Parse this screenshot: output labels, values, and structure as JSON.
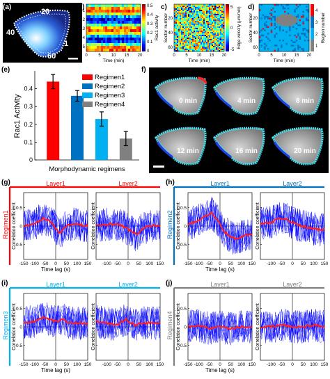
{
  "panel_labels": {
    "a": "(a)",
    "b": "b)",
    "c": "c)",
    "d": "d)",
    "e": "(e)",
    "f": "f)",
    "g": "(g)",
    "h": "(h)",
    "i": "(i)",
    "j": "(j)"
  },
  "panel_a": {
    "sector_labels": [
      "20",
      "40",
      "1",
      "60"
    ]
  },
  "panel_b": {
    "ylabel": "Window number",
    "colorbar_label": "Rac1 activity",
    "xlabel": "Time (min)",
    "xticks": [
      "0",
      "5",
      "10",
      "15",
      "20"
    ],
    "yticks": [
      "1",
      "2",
      "3",
      "4",
      "5"
    ],
    "cb_ticks": [
      "0.5",
      "0.4",
      "0.3",
      "0.2",
      "0.1",
      "0"
    ]
  },
  "panel_c": {
    "ylabel": "Sector number",
    "colorbar_label": "Edge velocity (μm/min)",
    "xlabel": "Time (min)",
    "xticks": [
      "0",
      "5",
      "10",
      "15",
      "20"
    ],
    "yticks": [
      "20",
      "40",
      "60"
    ],
    "cb_ticks": [
      "5",
      "0",
      "-5"
    ]
  },
  "panel_d": {
    "ylabel": "Sector number",
    "colorbar_label": "Region number",
    "xlabel": "Time (min)",
    "xticks": [
      "0",
      "5",
      "10",
      "15",
      "20"
    ],
    "yticks": [
      "20",
      "40",
      "60"
    ],
    "cb_ticks": [
      "4",
      "3",
      "2",
      "1"
    ]
  },
  "chart_data": [
    {
      "type": "bar",
      "panel": "e",
      "ylabel": "Rac1 Activity",
      "xlabel": "Morphodynamic regimens",
      "categories": [
        "Regimen1",
        "Regimen2",
        "Regimen3",
        "Regimen4"
      ],
      "values": [
        0.44,
        0.36,
        0.23,
        0.12
      ],
      "errors": [
        0.04,
        0.03,
        0.04,
        0.04
      ],
      "ylim": [
        0,
        0.5
      ],
      "yticks": [
        "0",
        "0.1",
        "0.2",
        "0.3",
        "0.4"
      ],
      "colors": [
        "#ff0000",
        "#0070c0",
        "#00b0f0",
        "#808080"
      ],
      "legend": "top-right"
    },
    {
      "type": "line",
      "panel": "g",
      "regimen_label": "Regimen1",
      "layers": [
        "Layer1",
        "Layer2"
      ],
      "ylabel": "Correlation coefficient",
      "xlabel": "Time lag (s)",
      "xticks": [
        "-150",
        "-100",
        "-50",
        "0",
        "50",
        "100",
        "150"
      ],
      "yticks": [
        "-0.5",
        "0",
        "0.5"
      ],
      "xlim": [
        -150,
        150
      ],
      "ylim": [
        -0.9,
        0.9
      ],
      "mean_layer1": [
        [
          -150,
          0.0
        ],
        [
          -100,
          0.05
        ],
        [
          -60,
          0.2
        ],
        [
          -30,
          0.15
        ],
        [
          0,
          -0.05
        ],
        [
          20,
          -0.2
        ],
        [
          40,
          -0.05
        ],
        [
          60,
          0.05
        ],
        [
          100,
          0.05
        ],
        [
          150,
          0.0
        ]
      ],
      "mean_layer2": [
        [
          -150,
          0.0
        ],
        [
          -100,
          0.05
        ],
        [
          -50,
          0.05
        ],
        [
          -10,
          -0.05
        ],
        [
          20,
          -0.15
        ],
        [
          40,
          -0.25
        ],
        [
          60,
          -0.1
        ],
        [
          100,
          0.0
        ],
        [
          150,
          0.02
        ]
      ]
    },
    {
      "type": "line",
      "panel": "h",
      "regimen_label": "Regimen2",
      "layers": [
        "Layer1",
        "Layer2"
      ],
      "ylabel": "Correlation coefficient",
      "xlabel": "Time lag (s)",
      "xticks": [
        "-150",
        "-100",
        "-50",
        "0",
        "50",
        "100",
        "150"
      ],
      "yticks": [
        "-0.5",
        "0",
        "0.5"
      ],
      "xlim": [
        -150,
        150
      ],
      "ylim": [
        -0.9,
        0.9
      ],
      "mean_layer1": [
        [
          -150,
          0.05
        ],
        [
          -100,
          0.15
        ],
        [
          -60,
          0.3
        ],
        [
          -40,
          0.35
        ],
        [
          -10,
          0.15
        ],
        [
          20,
          -0.15
        ],
        [
          50,
          -0.3
        ],
        [
          80,
          -0.35
        ],
        [
          120,
          -0.25
        ],
        [
          150,
          -0.2
        ]
      ],
      "mean_layer2": [
        [
          -150,
          0.05
        ],
        [
          -100,
          0.1
        ],
        [
          -60,
          0.2
        ],
        [
          -30,
          0.2
        ],
        [
          0,
          0.1
        ],
        [
          40,
          0.0
        ],
        [
          80,
          -0.05
        ],
        [
          120,
          -0.1
        ],
        [
          150,
          -0.1
        ]
      ]
    },
    {
      "type": "line",
      "panel": "i",
      "regimen_label": "Regimen3",
      "layers": [
        "Layer1",
        "Layer2"
      ],
      "ylabel": "Correlation coefficient",
      "xlabel": "Time lag (s)",
      "xticks": [
        "-150",
        "-100",
        "-50",
        "0",
        "50",
        "100",
        "150"
      ],
      "yticks": [
        "-0.5",
        "0",
        "0.5"
      ],
      "xlim": [
        -150,
        150
      ],
      "ylim": [
        -0.9,
        0.9
      ],
      "mean_layer1": [
        [
          -150,
          0.1
        ],
        [
          -100,
          0.15
        ],
        [
          -60,
          0.25
        ],
        [
          -30,
          0.2
        ],
        [
          0,
          0.15
        ],
        [
          30,
          0.2
        ],
        [
          70,
          0.1
        ],
        [
          100,
          0.1
        ],
        [
          150,
          0.1
        ]
      ],
      "mean_layer2": [
        [
          -150,
          0.15
        ],
        [
          -100,
          0.1
        ],
        [
          -50,
          0.05
        ],
        [
          -10,
          0.2
        ],
        [
          30,
          0.05
        ],
        [
          60,
          0.1
        ],
        [
          100,
          0.1
        ],
        [
          150,
          0.1
        ]
      ]
    },
    {
      "type": "line",
      "panel": "j",
      "regimen_label": "Regimen4",
      "layers": [
        "Layer1",
        "Layer2"
      ],
      "ylabel": "Correlation coefficient",
      "xlabel": "Time lag (s)",
      "xticks": [
        "-150",
        "-100",
        "-50",
        "0",
        "50",
        "100",
        "150"
      ],
      "yticks": [
        "-0.5",
        "0",
        "0.5"
      ],
      "xlim": [
        -150,
        150
      ],
      "ylim": [
        -0.9,
        0.9
      ],
      "mean_layer1": [
        [
          -150,
          0.0
        ],
        [
          -100,
          0.05
        ],
        [
          -50,
          -0.05
        ],
        [
          0,
          0.0
        ],
        [
          50,
          -0.05
        ],
        [
          100,
          0.0
        ],
        [
          150,
          0.0
        ]
      ],
      "mean_layer2": [
        [
          -150,
          0.0
        ],
        [
          -100,
          0.0
        ],
        [
          -50,
          0.05
        ],
        [
          0,
          0.0
        ],
        [
          50,
          0.0
        ],
        [
          100,
          0.05
        ],
        [
          150,
          0.0
        ]
      ]
    }
  ],
  "panel_f": {
    "time_labels": [
      "0 min",
      "4 min",
      "8 min",
      "12 min",
      "16 min",
      "20 min"
    ]
  },
  "colors": {
    "regimen1": "#ff0000",
    "regimen2": "#0070c0",
    "regimen3": "#00b0f0",
    "regimen4": "#808080",
    "trace": "#0000ff",
    "mean": "#ff2020"
  }
}
